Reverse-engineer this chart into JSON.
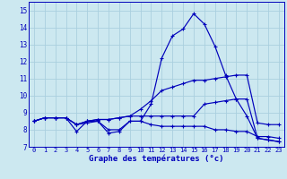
{
  "xlabel": "Graphe des températures (°c)",
  "background_color": "#cce8f0",
  "grid_color": "#aacfdf",
  "line_color": "#0000bb",
  "x_hours": [
    0,
    1,
    2,
    3,
    4,
    5,
    6,
    7,
    8,
    9,
    10,
    11,
    12,
    13,
    14,
    15,
    16,
    17,
    18,
    19,
    20,
    21,
    22,
    23
  ],
  "ylim": [
    7.0,
    15.5
  ],
  "xlim": [
    -0.5,
    23.5
  ],
  "series": [
    [
      8.5,
      8.7,
      8.7,
      8.7,
      7.9,
      8.5,
      8.5,
      7.8,
      7.9,
      8.5,
      8.5,
      9.5,
      12.2,
      13.5,
      13.9,
      14.8,
      14.2,
      12.9,
      11.2,
      9.8,
      8.8,
      7.5,
      7.4,
      7.3
    ],
    [
      8.5,
      8.7,
      8.7,
      8.7,
      8.3,
      8.5,
      8.6,
      8.6,
      8.7,
      8.8,
      9.2,
      9.7,
      10.3,
      10.5,
      10.7,
      10.9,
      10.9,
      11.0,
      11.1,
      11.2,
      11.2,
      8.4,
      8.3,
      8.3
    ],
    [
      8.5,
      8.7,
      8.7,
      8.7,
      8.3,
      8.5,
      8.6,
      8.6,
      8.7,
      8.8,
      8.8,
      8.8,
      8.8,
      8.8,
      8.8,
      8.8,
      9.5,
      9.6,
      9.7,
      9.8,
      9.8,
      7.5,
      7.4,
      7.3
    ],
    [
      8.5,
      8.7,
      8.7,
      8.7,
      8.3,
      8.4,
      8.5,
      8.0,
      8.0,
      8.5,
      8.5,
      8.3,
      8.2,
      8.2,
      8.2,
      8.2,
      8.2,
      8.0,
      8.0,
      7.9,
      7.9,
      7.6,
      7.6,
      7.5
    ]
  ]
}
